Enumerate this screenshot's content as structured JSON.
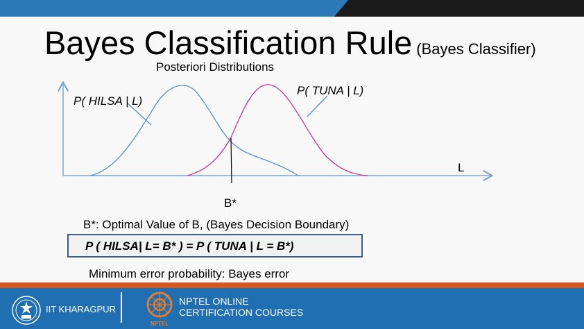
{
  "slide": {
    "title": "Bayes Classification Rule",
    "title_suffix": "(Bayes Classifier)",
    "subtitle": "Posteriori Distributions"
  },
  "diagram": {
    "label_hilsa": "P( HILSA | L)",
    "label_tuna": "P( TUNA | L)",
    "axis_label": "L",
    "boundary_label": "B*",
    "colors": {
      "hilsa": "#5a8fbf",
      "tuna": "#d6338a",
      "axis": "#7fa6cf"
    }
  },
  "note": "B*:  Optimal Value of B, (Bayes Decision Boundary)",
  "equation": "P ( HILSA| L= B* ) = P ( TUNA | L = B*)",
  "bottom_note": "Minimum error probability: Bayes error",
  "footer": {
    "institute": "IIT KHARAGPUR",
    "course_line1": "NPTEL ONLINE",
    "course_line2": "CERTIFICATION COURSES",
    "nptel_logo_text": "NPTEL"
  }
}
